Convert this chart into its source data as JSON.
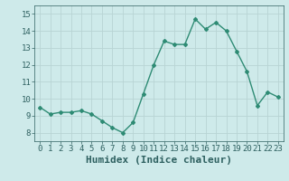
{
  "x": [
    0,
    1,
    2,
    3,
    4,
    5,
    6,
    7,
    8,
    9,
    10,
    11,
    12,
    13,
    14,
    15,
    16,
    17,
    18,
    19,
    20,
    21,
    22,
    23
  ],
  "y": [
    9.5,
    9.1,
    9.2,
    9.2,
    9.3,
    9.1,
    8.7,
    8.3,
    8.0,
    8.6,
    10.3,
    12.0,
    13.4,
    13.2,
    13.2,
    14.7,
    14.1,
    14.5,
    14.0,
    12.8,
    11.6,
    9.6,
    10.4,
    10.1
  ],
  "line_color": "#2e8b74",
  "marker": "D",
  "marker_size": 2,
  "bg_color": "#ceeaea",
  "grid_color": "#b8d4d4",
  "xlabel": "Humidex (Indice chaleur)",
  "xlim": [
    -0.5,
    23.5
  ],
  "ylim": [
    7.5,
    15.5
  ],
  "yticks": [
    8,
    9,
    10,
    11,
    12,
    13,
    14,
    15
  ],
  "xticks": [
    0,
    1,
    2,
    3,
    4,
    5,
    6,
    7,
    8,
    9,
    10,
    11,
    12,
    13,
    14,
    15,
    16,
    17,
    18,
    19,
    20,
    21,
    22,
    23
  ],
  "tick_fontsize": 6.5,
  "xlabel_fontsize": 8,
  "line_width": 1.0
}
